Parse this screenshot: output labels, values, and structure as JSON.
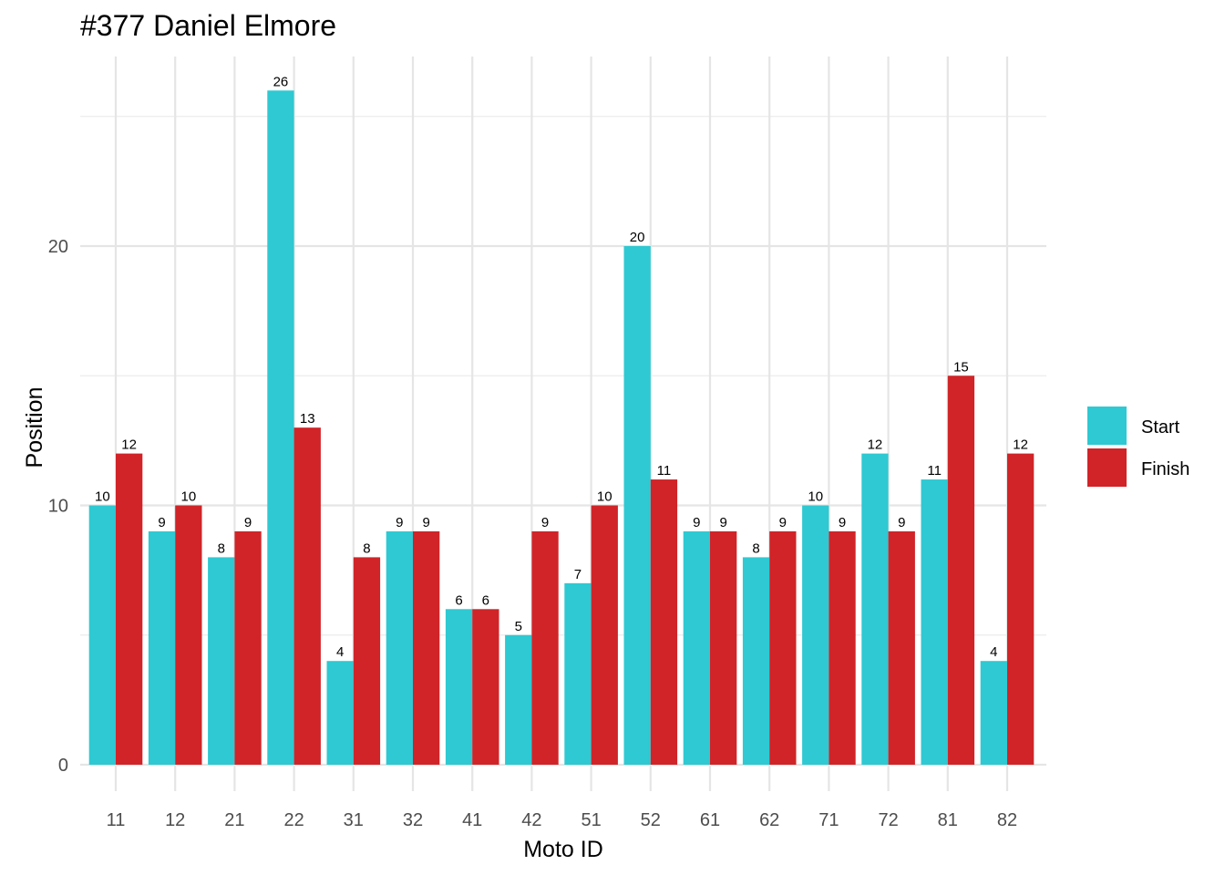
{
  "chart_data": {
    "type": "bar",
    "title": "#377 Daniel Elmore",
    "xlabel": "Moto ID",
    "ylabel": "Position",
    "categories": [
      "11",
      "12",
      "21",
      "22",
      "31",
      "32",
      "41",
      "42",
      "51",
      "52",
      "61",
      "62",
      "71",
      "72",
      "81",
      "82"
    ],
    "series": [
      {
        "name": "Start",
        "color": "#2ec9d2",
        "values": [
          10,
          9,
          8,
          26,
          4,
          9,
          6,
          5,
          7,
          20,
          9,
          8,
          10,
          12,
          11,
          4
        ]
      },
      {
        "name": "Finish",
        "color": "#d02428",
        "values": [
          12,
          10,
          9,
          13,
          8,
          9,
          6,
          9,
          10,
          11,
          9,
          9,
          9,
          9,
          15,
          12
        ]
      }
    ],
    "ylim": [
      0,
      26
    ],
    "yticks": [
      0,
      10,
      20
    ],
    "grid": true,
    "legend_position": "right",
    "data_labels": true
  }
}
